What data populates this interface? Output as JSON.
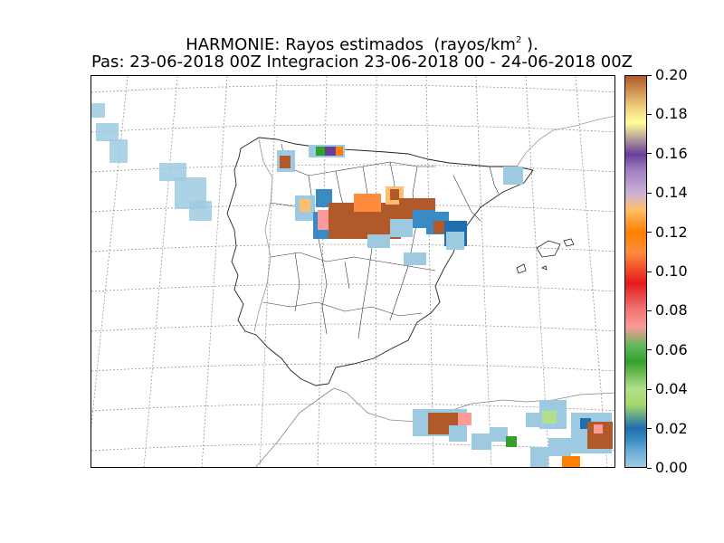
{
  "title": {
    "line1_prefix": "HARMONIE: Rayos estimados  (rayos/km",
    "line1_sup": "2",
    "line1_suffix": " ).",
    "line2": "Pas: 23-06-2018 00Z Integracion 23-06-2018 00 - 24-06-2018 00Z"
  },
  "colorbar": {
    "min": 0.0,
    "max": 0.2,
    "ticks": [
      "0.00",
      "0.02",
      "0.04",
      "0.06",
      "0.08",
      "0.10",
      "0.12",
      "0.14",
      "0.16",
      "0.18",
      "0.20"
    ],
    "colors": [
      "#9ecae1",
      "#3a8ac4",
      "#1f6fb0",
      "#b2df8a",
      "#33a02c",
      "#fb9a99",
      "#e31a1c",
      "#ff7f00",
      "#cab2d6",
      "#6a3d9a",
      "#ffff99",
      "#b15928"
    ]
  },
  "map": {
    "region": "Iberian Peninsula",
    "gridlines": "dotted",
    "borders": [
      "coastlines",
      "provinces"
    ]
  }
}
